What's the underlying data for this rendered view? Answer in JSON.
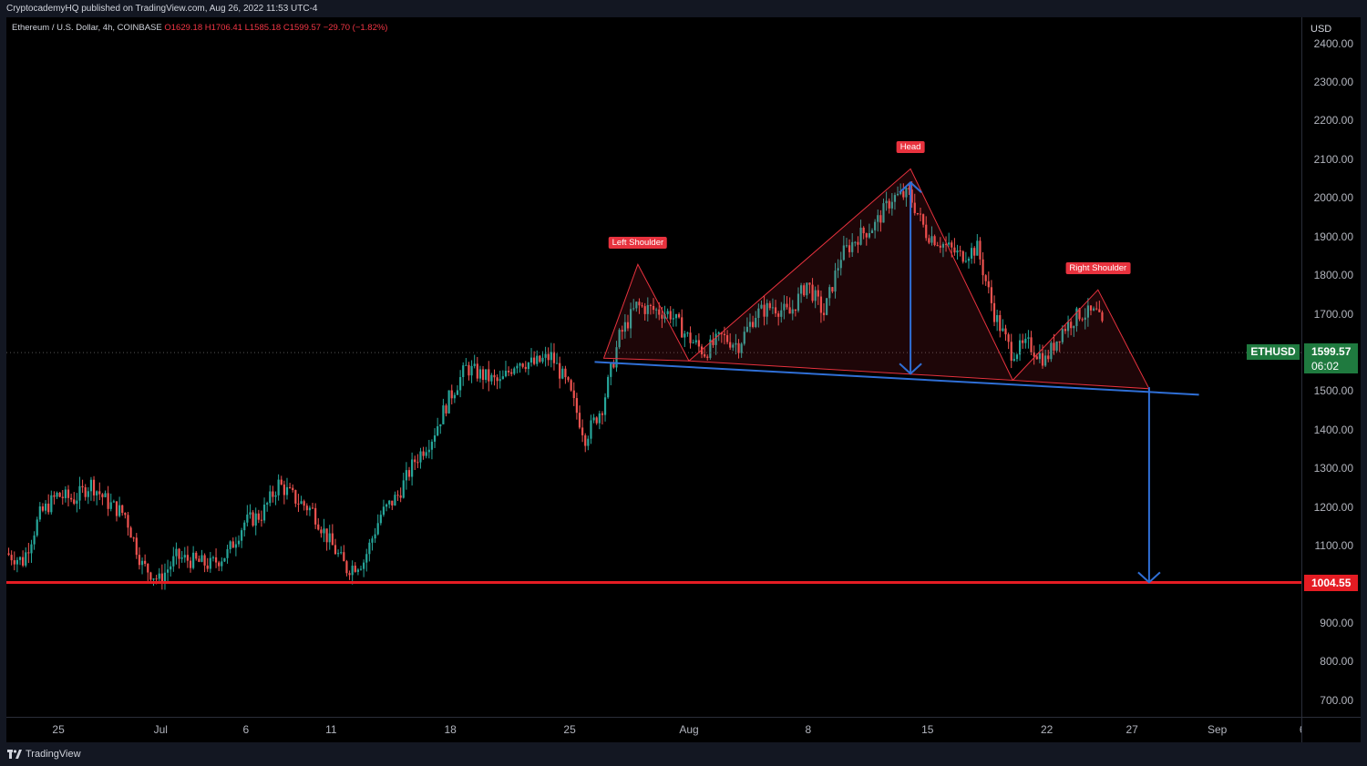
{
  "header": {
    "publish_line": "CryptocademyHQ published on TradingView.com, Aug 26, 2022 11:53 UTC-4"
  },
  "symbol": {
    "name": "Ethereum / U.S. Dollar, 4h, COINBASE",
    "open": "O1629.18",
    "high": "H1706.41",
    "low": "L1585.18",
    "close": "C1599.57",
    "change": "−29.70 (−1.82%)"
  },
  "price_axis": {
    "currency": "USD",
    "ticks": [
      "2400.00",
      "2300.00",
      "2200.00",
      "2100.00",
      "2000.00",
      "1900.00",
      "1800.00",
      "1700.00",
      "1500.00",
      "1400.00",
      "1300.00",
      "1200.00",
      "1100.00",
      "900.00",
      "800.00",
      "700.00"
    ]
  },
  "time_axis": {
    "ticks": [
      "25",
      "Jul",
      "6",
      "11",
      "18",
      "25",
      "Aug",
      "8",
      "15",
      "22",
      "27",
      "Sep",
      "6"
    ]
  },
  "last_price": {
    "ticker": "ETHUSD",
    "price": "1599.57",
    "countdown": "06:02"
  },
  "target_price": "1004.55",
  "pattern_labels": {
    "left": "Left Shoulder",
    "head": "Head",
    "right": "Right Shoulder"
  },
  "footer": {
    "brand": "TradingView"
  },
  "colors": {
    "up": "#26a69a",
    "down": "#ef5350",
    "neckline": "#2f6fd6",
    "target_line": "#e51c23",
    "pattern": "#e8323e"
  },
  "chart_data": {
    "type": "candlestick",
    "title": "Ethereum / U.S. Dollar, 4h, COINBASE",
    "ylim": [
      640,
      2440
    ],
    "x_range": [
      "2022-06-22",
      "2022-09-06"
    ],
    "x_tick_dates": {
      "25": "2022-07-25",
      "Jul": "2022-07-01",
      "6": "2022-09-06",
      "11": "2022-07-11",
      "18": "2022-07-18",
      "Aug": "2022-08-01",
      "8": "2022-08-08",
      "15": "2022-08-15",
      "22": "2022-08-22",
      "27": "2022-08-27",
      "Sep": "2022-09-01"
    },
    "price_path": [
      {
        "date": "2022-06-22",
        "price": 1080
      },
      {
        "date": "2022-06-23",
        "price": 1060
      },
      {
        "date": "2022-06-24",
        "price": 1180
      },
      {
        "date": "2022-06-25",
        "price": 1230
      },
      {
        "date": "2022-06-26",
        "price": 1220
      },
      {
        "date": "2022-06-27",
        "price": 1260
      },
      {
        "date": "2022-06-28",
        "price": 1210
      },
      {
        "date": "2022-06-29",
        "price": 1180
      },
      {
        "date": "2022-06-30",
        "price": 1050
      },
      {
        "date": "2022-07-01",
        "price": 1010
      },
      {
        "date": "2022-07-02",
        "price": 1070
      },
      {
        "date": "2022-07-03",
        "price": 1060
      },
      {
        "date": "2022-07-04",
        "price": 1050
      },
      {
        "date": "2022-07-05",
        "price": 1080
      },
      {
        "date": "2022-07-06",
        "price": 1160
      },
      {
        "date": "2022-07-07",
        "price": 1180
      },
      {
        "date": "2022-07-08",
        "price": 1260
      },
      {
        "date": "2022-07-09",
        "price": 1220
      },
      {
        "date": "2022-07-10",
        "price": 1190
      },
      {
        "date": "2022-07-11",
        "price": 1110
      },
      {
        "date": "2022-07-12",
        "price": 1040
      },
      {
        "date": "2022-07-13",
        "price": 1060
      },
      {
        "date": "2022-07-14",
        "price": 1180
      },
      {
        "date": "2022-07-15",
        "price": 1230
      },
      {
        "date": "2022-07-16",
        "price": 1320
      },
      {
        "date": "2022-07-17",
        "price": 1380
      },
      {
        "date": "2022-07-18",
        "price": 1480
      },
      {
        "date": "2022-07-19",
        "price": 1560
      },
      {
        "date": "2022-07-20",
        "price": 1540
      },
      {
        "date": "2022-07-21",
        "price": 1520
      },
      {
        "date": "2022-07-22",
        "price": 1580
      },
      {
        "date": "2022-07-23",
        "price": 1570
      },
      {
        "date": "2022-07-24",
        "price": 1590
      },
      {
        "date": "2022-07-25",
        "price": 1510
      },
      {
        "date": "2022-07-26",
        "price": 1380
      },
      {
        "date": "2022-07-27",
        "price": 1460
      },
      {
        "date": "2022-07-28",
        "price": 1640
      },
      {
        "date": "2022-07-29",
        "price": 1720
      },
      {
        "date": "2022-07-30",
        "price": 1710
      },
      {
        "date": "2022-07-31",
        "price": 1700
      },
      {
        "date": "2022-08-01",
        "price": 1640
      },
      {
        "date": "2022-08-02",
        "price": 1600
      },
      {
        "date": "2022-08-03",
        "price": 1640
      },
      {
        "date": "2022-08-04",
        "price": 1620
      },
      {
        "date": "2022-08-05",
        "price": 1700
      },
      {
        "date": "2022-08-06",
        "price": 1720
      },
      {
        "date": "2022-08-07",
        "price": 1700
      },
      {
        "date": "2022-08-08",
        "price": 1780
      },
      {
        "date": "2022-08-09",
        "price": 1700
      },
      {
        "date": "2022-08-10",
        "price": 1850
      },
      {
        "date": "2022-08-11",
        "price": 1900
      },
      {
        "date": "2022-08-12",
        "price": 1930
      },
      {
        "date": "2022-08-13",
        "price": 2000
      },
      {
        "date": "2022-08-14",
        "price": 2010
      },
      {
        "date": "2022-08-15",
        "price": 1910
      },
      {
        "date": "2022-08-16",
        "price": 1880
      },
      {
        "date": "2022-08-17",
        "price": 1850
      },
      {
        "date": "2022-08-18",
        "price": 1870
      },
      {
        "date": "2022-08-19",
        "price": 1700
      },
      {
        "date": "2022-08-20",
        "price": 1600
      },
      {
        "date": "2022-08-21",
        "price": 1620
      },
      {
        "date": "2022-08-22",
        "price": 1580
      },
      {
        "date": "2022-08-23",
        "price": 1660
      },
      {
        "date": "2022-08-24",
        "price": 1700
      },
      {
        "date": "2022-08-25",
        "price": 1700
      },
      {
        "date": "2022-08-26",
        "price": 1600
      }
    ],
    "last_price": 1599.57,
    "target_level": 1004.55,
    "neckline": [
      {
        "date": "2022-07-27",
        "price": 1580
      },
      {
        "date": "2022-08-29",
        "price": 1500
      }
    ],
    "pattern": {
      "left_shoulder": [
        {
          "date": "2022-07-27",
          "price": 1585
        },
        {
          "date": "2022-07-29",
          "price": 1828
        },
        {
          "date": "2022-08-01",
          "price": 1578
        }
      ],
      "head": [
        {
          "date": "2022-08-01",
          "price": 1578
        },
        {
          "date": "2022-08-14",
          "price": 2075
        },
        {
          "date": "2022-08-20",
          "price": 1528
        }
      ],
      "right_shoulder": [
        {
          "date": "2022-08-20",
          "price": 1528
        },
        {
          "date": "2022-08-25",
          "price": 1762
        },
        {
          "date": "2022-08-28",
          "price": 1506
        }
      ]
    },
    "head_height_arrow": [
      {
        "date": "2022-08-14",
        "price": 2040
      },
      {
        "date": "2022-08-14",
        "price": 1545
      }
    ],
    "projection_arrow": [
      {
        "date": "2022-08-28",
        "price": 1510
      },
      {
        "date": "2022-08-28",
        "price": 1005
      }
    ]
  }
}
